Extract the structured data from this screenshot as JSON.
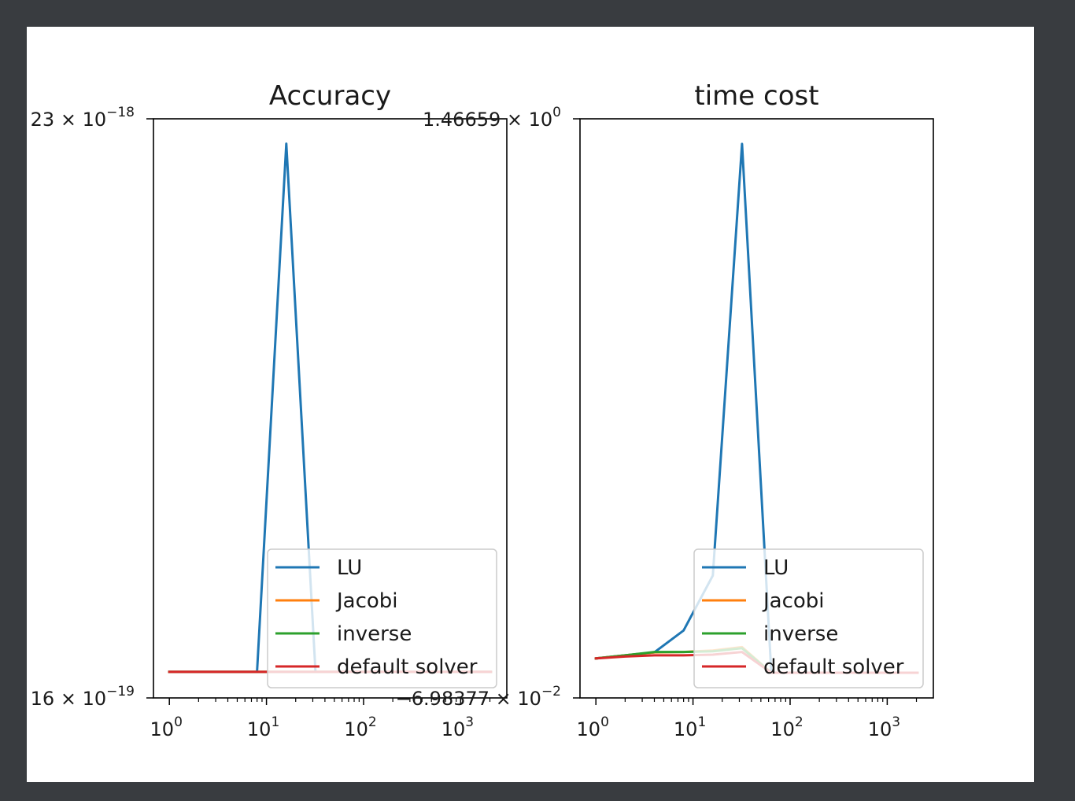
{
  "chart_data": [
    {
      "type": "line",
      "title": "Accuracy",
      "xscale": "log",
      "xlim": [
        1,
        2048
      ],
      "xticks": [
        {
          "value": 1,
          "base": "10",
          "exp": "0"
        },
        {
          "value": 10,
          "base": "10",
          "exp": "1"
        },
        {
          "value": 100,
          "base": "10",
          "exp": "2"
        },
        {
          "value": 1000,
          "base": "10",
          "exp": "3"
        }
      ],
      "ylim": [
        0,
        100
      ],
      "yticks": [
        {
          "value": 100,
          "mant": "23 × 10",
          "exp": "−18"
        },
        {
          "value": 0,
          "mant": "16 × 10",
          "exp": "−19"
        }
      ],
      "grid": false,
      "legend": {
        "position": "lower right",
        "entries": [
          "LU",
          "Jacobi",
          "inverse",
          "default solver"
        ]
      },
      "x": [
        1,
        2,
        4,
        8,
        16,
        32,
        64,
        128,
        256,
        512,
        1024,
        2048
      ],
      "series": [
        {
          "name": "LU",
          "color": "#1f77b4",
          "values": [
            4.5,
            4.5,
            4.5,
            4.5,
            95.7,
            4.5,
            4.5,
            4.5,
            4.5,
            4.5,
            4.5,
            4.5
          ]
        },
        {
          "name": "Jacobi",
          "color": "#ff7f0e",
          "values": [
            4.5,
            4.5,
            4.5,
            4.5,
            4.5,
            4.5,
            4.5,
            4.5,
            4.5,
            4.5,
            4.5,
            4.5
          ]
        },
        {
          "name": "inverse",
          "color": "#2ca02c",
          "values": [
            4.5,
            4.5,
            4.5,
            4.5,
            4.5,
            4.5,
            4.5,
            4.5,
            4.5,
            4.5,
            4.5,
            4.5
          ]
        },
        {
          "name": "default solver",
          "color": "#d62728",
          "values": [
            4.5,
            4.5,
            4.5,
            4.5,
            4.5,
            4.5,
            4.5,
            4.5,
            4.5,
            4.5,
            4.5,
            4.5
          ]
        }
      ]
    },
    {
      "type": "line",
      "title": "time cost",
      "xscale": "log",
      "xlim": [
        1,
        2048
      ],
      "xticks": [
        {
          "value": 1,
          "base": "10",
          "exp": "0"
        },
        {
          "value": 10,
          "base": "10",
          "exp": "1"
        },
        {
          "value": 100,
          "base": "10",
          "exp": "2"
        },
        {
          "value": 1000,
          "base": "10",
          "exp": "3"
        }
      ],
      "ylim": [
        -0.0698377,
        1.46659
      ],
      "yticks": [
        {
          "value": 1.46659,
          "mant": "1.46659 × 10",
          "exp": "0"
        },
        {
          "value": -0.0698377,
          "mant": "−6.98377 × 10",
          "exp": "−2"
        }
      ],
      "grid": false,
      "legend": {
        "position": "lower right",
        "entries": [
          "LU",
          "Jacobi",
          "inverse",
          "default solver"
        ]
      },
      "x": [
        1,
        2,
        4,
        8,
        16,
        32,
        64,
        128,
        256,
        512,
        1024,
        2048
      ],
      "series": [
        {
          "name": "LU",
          "color": "#1f77b4",
          "values": [
            0.035,
            0.043,
            0.051,
            0.109,
            0.255,
            1.4,
            -0.003,
            -0.003,
            -0.003,
            -0.003,
            -0.003,
            -0.003
          ]
        },
        {
          "name": "Jacobi",
          "color": "#ff7f0e",
          "values": [
            0.035,
            0.043,
            0.051,
            0.052,
            0.056,
            0.065,
            -0.003,
            -0.003,
            -0.003,
            -0.003,
            -0.003,
            -0.003
          ]
        },
        {
          "name": "inverse",
          "color": "#2ca02c",
          "values": [
            0.035,
            0.043,
            0.052,
            0.052,
            0.054,
            0.062,
            -0.003,
            -0.003,
            -0.003,
            -0.003,
            -0.003,
            -0.003
          ]
        },
        {
          "name": "default solver",
          "color": "#d62728",
          "values": [
            0.035,
            0.04,
            0.043,
            0.043,
            0.045,
            0.052,
            -0.003,
            -0.003,
            -0.003,
            -0.003,
            -0.003,
            -0.003
          ]
        }
      ]
    }
  ]
}
